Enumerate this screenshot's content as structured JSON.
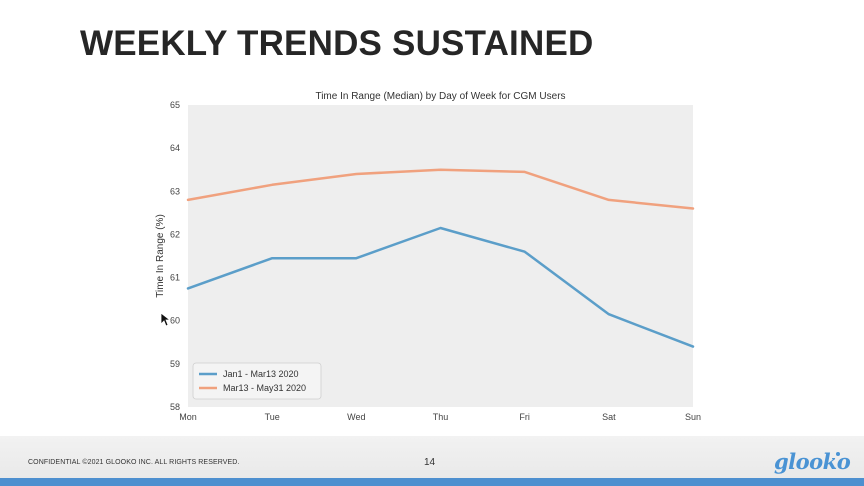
{
  "slide": {
    "title": "WEEKLY TRENDS SUSTAINED",
    "footer": {
      "confidential": "CONFIDENTIAL ©2021 GLOOKO INC. ALL RIGHTS RESERVED.",
      "page_number": "14",
      "logo_text": "glooko",
      "logo_color": "#4a93d4"
    },
    "cursor_icon": "mouse-pointer-icon"
  },
  "chart_data": {
    "type": "line",
    "title": "Time In Range (Median) by Day of Week for CGM Users",
    "xlabel": "",
    "ylabel": "Time In Range (%)",
    "categories": [
      "Mon",
      "Tue",
      "Wed",
      "Thu",
      "Fri",
      "Sat",
      "Sun"
    ],
    "ylim": [
      58,
      65
    ],
    "yticks": [
      58,
      59,
      60,
      61,
      62,
      63,
      64,
      65
    ],
    "grid": false,
    "legend": "lower-left",
    "background": "#eeeeee",
    "series": [
      {
        "name": "Jan1 - Mar13 2020",
        "color": "#5b9ec9",
        "values": [
          60.75,
          61.45,
          61.45,
          62.15,
          61.6,
          60.15,
          59.4
        ]
      },
      {
        "name": "Mar13 - May31 2020",
        "color": "#f0a17e",
        "values": [
          62.8,
          63.15,
          63.4,
          63.5,
          63.45,
          62.8,
          62.6
        ]
      }
    ]
  }
}
